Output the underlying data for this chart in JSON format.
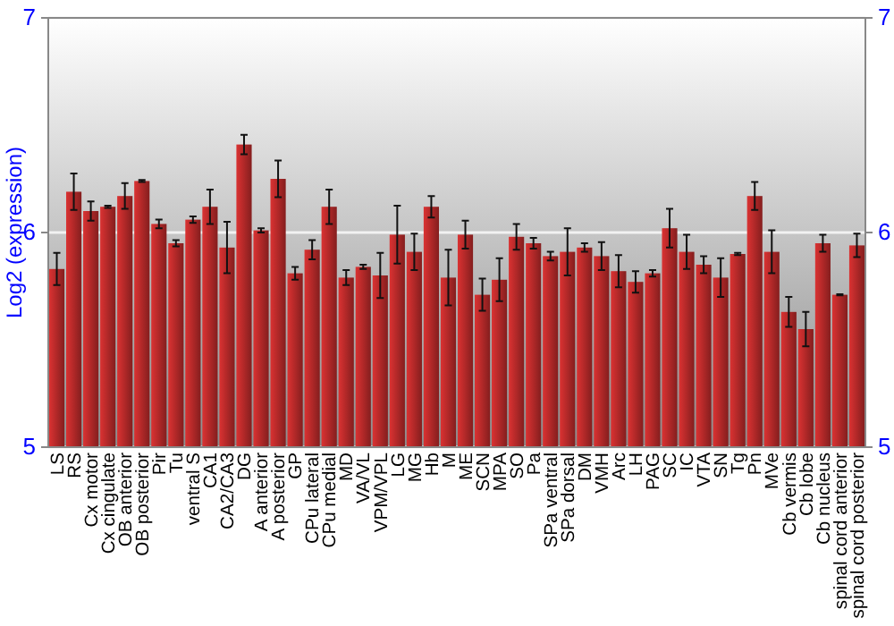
{
  "chart_data": {
    "type": "bar",
    "ylabel": "Log2 (expression)",
    "categories": [
      "LS",
      "RS",
      "Cx motor",
      "Cx cingulate",
      "OB anterior",
      "OB posterior",
      "Pir",
      "Tu",
      "ventral S",
      "CA1",
      "CA2/CA3",
      "DG",
      "A anterior",
      "A posterior",
      "GP",
      "CPu lateral",
      "CPu medial",
      "MD",
      "VA/VL",
      "VPM/VPL",
      "LG",
      "MG",
      "Hb",
      "M",
      "ME",
      "SCN",
      "MPA",
      "SO",
      "Pa",
      "SPa ventral",
      "SPa dorsal",
      "DM",
      "VMH",
      "Arc",
      "LH",
      "PAG",
      "SC",
      "IC",
      "VTA",
      "SN",
      "Tg",
      "Pn",
      "MVe",
      "Cb vermis",
      "Cb lobe",
      "Cb nucleus",
      "spinal cord anterior",
      "spinal cord posterior"
    ],
    "values": [
      5.83,
      6.19,
      6.1,
      6.12,
      6.17,
      6.24,
      6.04,
      5.95,
      6.06,
      6.12,
      5.93,
      6.41,
      6.01,
      6.25,
      5.81,
      5.92,
      6.12,
      5.79,
      5.84,
      5.8,
      5.99,
      5.91,
      6.12,
      5.79,
      5.99,
      5.71,
      5.78,
      5.98,
      5.95,
      5.89,
      5.91,
      5.93,
      5.89,
      5.82,
      5.77,
      5.81,
      6.02,
      5.91,
      5.85,
      5.79,
      5.9,
      6.17,
      5.91,
      5.63,
      5.55,
      5.95,
      5.71,
      5.94
    ],
    "errors": [
      0.075,
      0.085,
      0.045,
      0.005,
      0.06,
      0.005,
      0.02,
      0.015,
      0.015,
      0.08,
      0.12,
      0.045,
      0.01,
      0.085,
      0.03,
      0.045,
      0.08,
      0.035,
      0.01,
      0.105,
      0.135,
      0.085,
      0.05,
      0.13,
      0.065,
      0.075,
      0.1,
      0.06,
      0.025,
      0.02,
      0.11,
      0.02,
      0.065,
      0.075,
      0.05,
      0.015,
      0.09,
      0.08,
      0.04,
      0.09,
      0.005,
      0.065,
      0.1,
      0.07,
      0.08,
      0.04,
      0.003,
      0.055
    ],
    "color": "#b02828",
    "ylim": [
      5,
      7
    ],
    "yticks": [
      5,
      6,
      7
    ],
    "y2lim": [
      5,
      7
    ],
    "y2ticks": [
      5,
      6,
      7
    ],
    "grid": "y"
  }
}
